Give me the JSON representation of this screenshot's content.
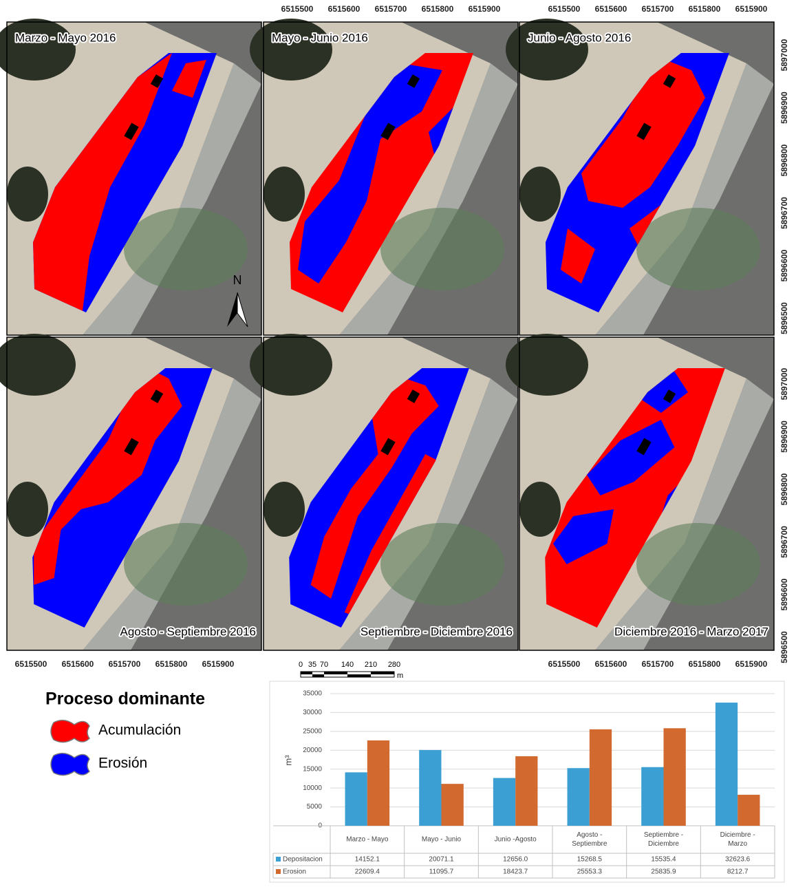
{
  "maps": {
    "panels": [
      "Marzo - Mayo 2016",
      "Mayo - Junio 2016",
      "Junio - Agosto 2016",
      "Agosto - Septiembre 2016",
      "Septiembre - Diciembre 2016",
      "Diciembre 2016 - Marzo 2017"
    ],
    "x_ticks": [
      "6515500",
      "6515600",
      "6515700",
      "6515800",
      "6515900"
    ],
    "y_ticks": [
      "5897000",
      "5896900",
      "5896800",
      "5896700",
      "5896600",
      "5896500"
    ],
    "north_label": "N",
    "scale_bar": {
      "labels": [
        "0",
        "35",
        "70",
        "140",
        "210",
        "280"
      ],
      "unit": "m"
    }
  },
  "legend": {
    "title": "Proceso dominante",
    "items": [
      {
        "label": "Acumulación",
        "color": "#ff0000"
      },
      {
        "label": "Erosión",
        "color": "#0000ff"
      }
    ]
  },
  "chart_data": {
    "type": "bar",
    "y_label": "m³",
    "categories": [
      "Marzo - Mayo",
      "Mayo - Junio",
      "Junio -Agosto",
      "Agosto - Septiembre",
      "Septiembre - Diciembre",
      "Diciembre - Marzo"
    ],
    "series": [
      {
        "name": "Depositacion",
        "color": "#3b9fd3",
        "values": [
          14152.1,
          20071.1,
          12656.0,
          15268.5,
          15535.4,
          32623.6
        ],
        "value_labels": [
          "14152.1",
          "20071.1",
          "12656.0",
          "15268.5",
          "15535.4",
          "32623.6"
        ]
      },
      {
        "name": "Erosion",
        "color": "#d2692f",
        "values": [
          22609.4,
          11095.7,
          18423.7,
          25553.3,
          25835.9,
          8212.7
        ],
        "value_labels": [
          "22609.4",
          "11095.7",
          "18423.7",
          "25553.3",
          "25835.9",
          "8212.7"
        ]
      }
    ],
    "ylim": [
      0,
      35000
    ],
    "yticks": [
      0,
      5000,
      10000,
      15000,
      20000,
      25000,
      30000,
      35000
    ],
    "grid": true
  }
}
